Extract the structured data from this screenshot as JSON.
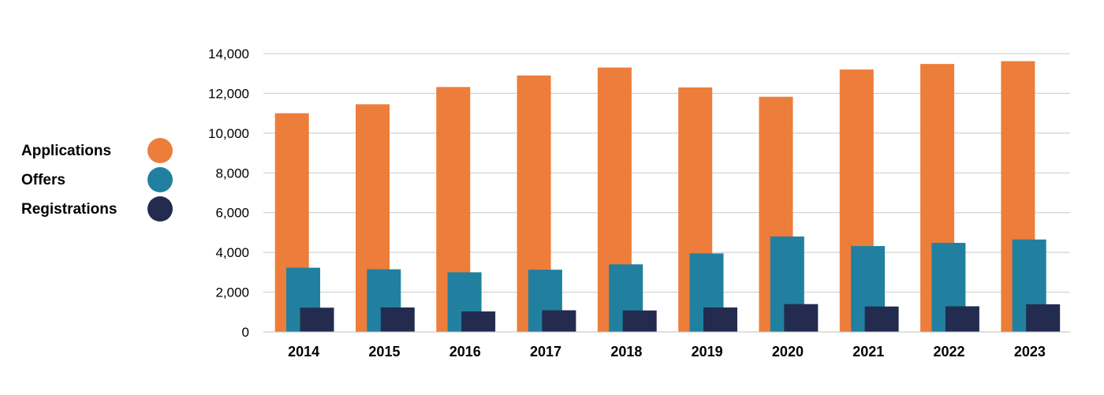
{
  "chart_data": {
    "type": "bar",
    "categories": [
      "2014",
      "2015",
      "2016",
      "2017",
      "2018",
      "2019",
      "2020",
      "2021",
      "2022",
      "2023"
    ],
    "series": [
      {
        "name": "Applications",
        "color": "#ED7D3A",
        "values": [
          11000,
          11450,
          12320,
          12900,
          13300,
          12300,
          11830,
          13200,
          13480,
          13620
        ]
      },
      {
        "name": "Offers",
        "color": "#2180A0",
        "values": [
          3230,
          3150,
          3000,
          3130,
          3400,
          3950,
          4800,
          4320,
          4480,
          4650
        ]
      },
      {
        "name": "Registrations",
        "color": "#232C4F",
        "values": [
          1220,
          1230,
          1030,
          1090,
          1080,
          1230,
          1400,
          1280,
          1290,
          1390
        ]
      }
    ],
    "y_ticks": [
      "0",
      "2,000",
      "4,000",
      "6,000",
      "8,000",
      "10,000",
      "12,000",
      "14,000"
    ],
    "ylim": [
      0,
      14000
    ],
    "grid": true,
    "legend_position": "left",
    "title": "",
    "xlabel": "",
    "ylabel": ""
  },
  "legend": {
    "items": [
      {
        "label": "Applications",
        "color": "#ED7D3A"
      },
      {
        "label": "Offers",
        "color": "#2180A0"
      },
      {
        "label": "Registrations",
        "color": "#232C4F"
      }
    ]
  }
}
